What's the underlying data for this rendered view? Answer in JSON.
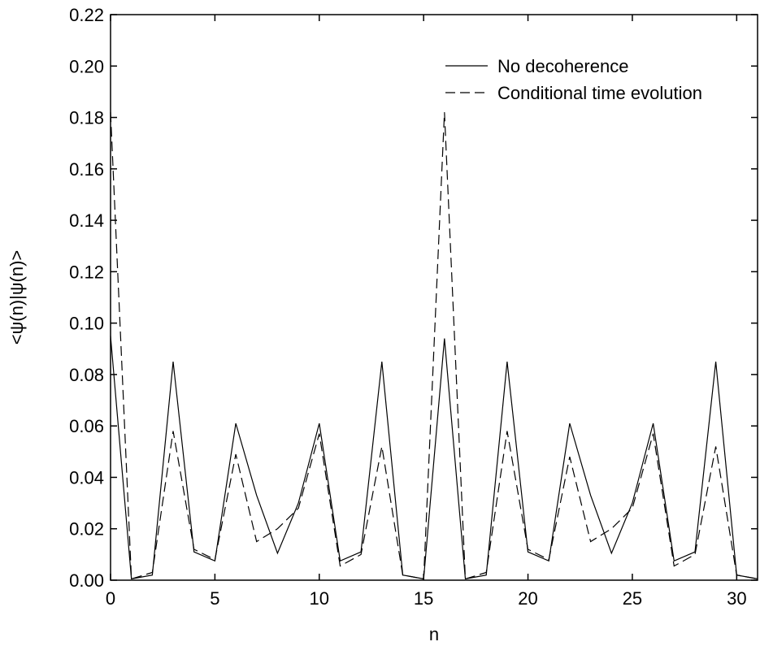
{
  "chart_data": {
    "type": "line",
    "xlabel": "n",
    "ylabel": "<ψ(n)|ψ(n)>",
    "xlim": [
      0,
      31
    ],
    "ylim": [
      0,
      0.22
    ],
    "xticks": [
      0,
      5,
      10,
      15,
      20,
      25,
      30
    ],
    "xtick_labels": [
      "0",
      "5",
      "10",
      "15",
      "20",
      "25",
      "30"
    ],
    "yticks": [
      0,
      0.02,
      0.04,
      0.06,
      0.08,
      0.1,
      0.12,
      0.14,
      0.16,
      0.18,
      0.2,
      0.22
    ],
    "ytick_labels": [
      "0.00",
      "0.02",
      "0.04",
      "0.06",
      "0.08",
      "0.10",
      "0.12",
      "0.14",
      "0.16",
      "0.18",
      "0.20",
      "0.22"
    ],
    "grid": false,
    "legend_position": "top-right",
    "x": [
      0,
      1,
      2,
      3,
      4,
      5,
      6,
      7,
      8,
      9,
      10,
      11,
      12,
      13,
      14,
      15,
      16,
      17,
      18,
      19,
      20,
      21,
      22,
      23,
      24,
      25,
      26,
      27,
      28,
      29,
      30,
      31
    ],
    "series": [
      {
        "name": "No decoherence",
        "style": "solid",
        "color": "#000000",
        "values": [
          0.095,
          0.0005,
          0.002,
          0.085,
          0.011,
          0.0075,
          0.061,
          0.033,
          0.0105,
          0.03,
          0.061,
          0.0075,
          0.011,
          0.085,
          0.002,
          0.0005,
          0.094,
          0.0005,
          0.002,
          0.085,
          0.011,
          0.0075,
          0.061,
          0.033,
          0.0105,
          0.03,
          0.061,
          0.0075,
          0.011,
          0.085,
          0.002,
          0.0005
        ]
      },
      {
        "name": "Conditional time evolution",
        "style": "dashed",
        "color": "#000000",
        "values": [
          0.182,
          0.0005,
          0.003,
          0.058,
          0.012,
          0.008,
          0.049,
          0.015,
          0.02,
          0.028,
          0.057,
          0.0055,
          0.01,
          0.052,
          0.002,
          0.0005,
          0.182,
          0.0005,
          0.003,
          0.058,
          0.012,
          0.008,
          0.048,
          0.015,
          0.02,
          0.028,
          0.057,
          0.0055,
          0.01,
          0.052,
          0.002,
          0.0005
        ]
      }
    ]
  }
}
